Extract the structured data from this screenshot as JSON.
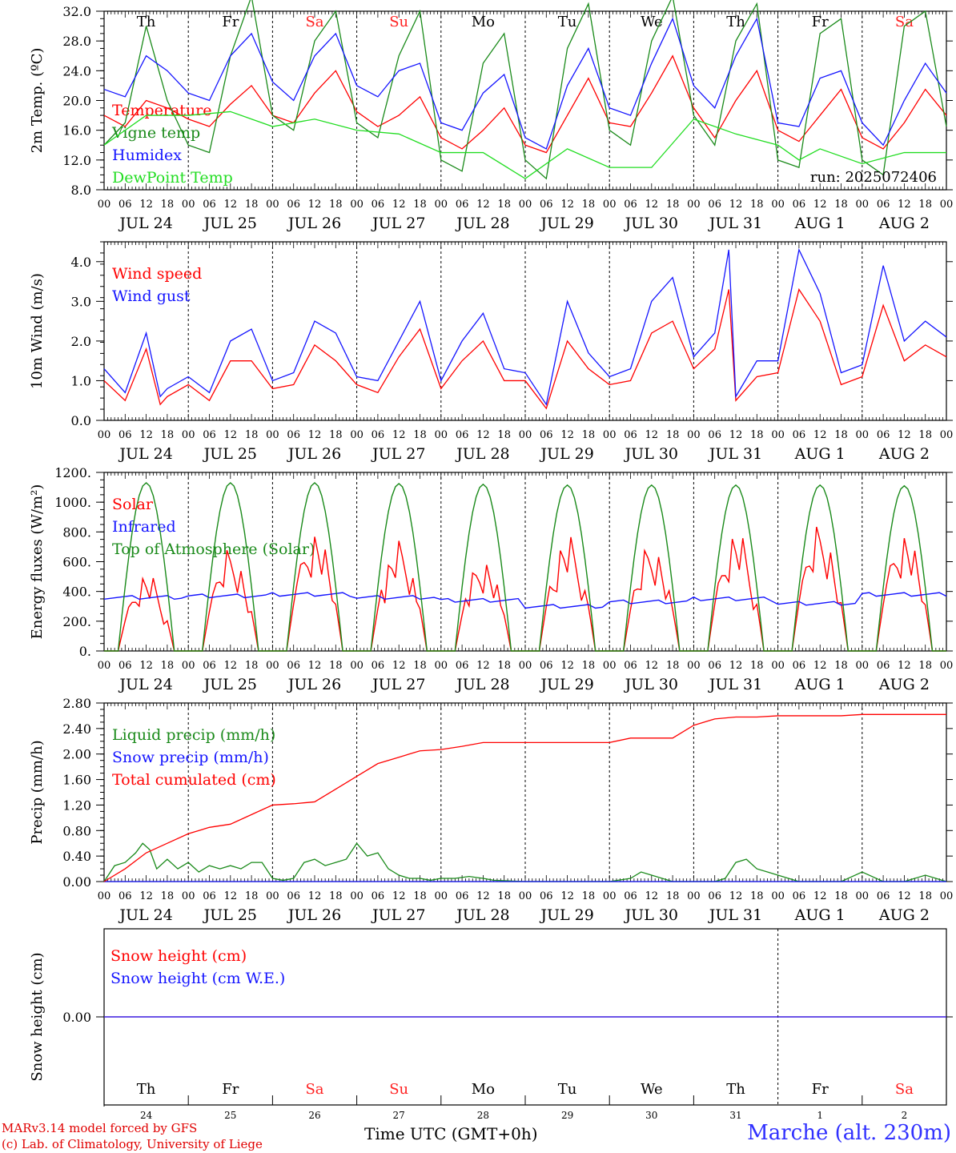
{
  "footer": {
    "model": "MARv3.14 model forced by GFS",
    "copyright": "(c) Lab. of Climatology, University of Liege",
    "station": "Marche (alt. 230m)",
    "time_label": "Time UTC (GMT+0h)"
  },
  "run_label": "run: 2025072406",
  "colors": {
    "red": "#ff0000",
    "green": "#1a8a1a",
    "blue": "#1515ff",
    "lightgreen": "#22dd22",
    "grid": "#000000"
  },
  "days": [
    "Th",
    "Fr",
    "Sa",
    "Su",
    "Mo",
    "Tu",
    "We",
    "Th",
    "Fr",
    "Sa"
  ],
  "weekend_days": [
    2,
    3,
    9
  ],
  "date_labels": [
    "JUL 24",
    "JUL 25",
    "JUL 26",
    "JUL 27",
    "JUL 28",
    "JUL 29",
    "JUL 30",
    "JUL 31",
    "AUG  1",
    "AUG  2"
  ],
  "day_numbers": [
    "24",
    "25",
    "26",
    "27",
    "28",
    "29",
    "30",
    "31",
    "1",
    "2"
  ],
  "hour_ticks": [
    "00",
    "06",
    "12",
    "18"
  ],
  "chart_data": [
    {
      "type": "line",
      "ylabel": "2m Temp. (ºC)",
      "ylim": [
        8,
        32
      ],
      "yticks": [
        "8.0",
        "12.0",
        "16.0",
        "20.0",
        "24.0",
        "28.0",
        "32.0"
      ],
      "xlim_hours": [
        0,
        240
      ],
      "series": [
        {
          "name": "Temperature",
          "color": "red",
          "x": [
            0,
            6,
            12,
            18,
            24,
            30,
            36,
            42,
            48,
            54,
            60,
            66,
            72,
            78,
            84,
            90,
            96,
            102,
            108,
            114,
            120,
            126,
            132,
            138,
            144,
            150,
            156,
            162,
            168,
            174,
            180,
            186,
            192,
            198,
            204,
            210,
            216,
            222,
            228,
            234,
            240
          ],
          "y": [
            18,
            16.5,
            20,
            19,
            17.5,
            16.5,
            19.5,
            22,
            18,
            17,
            21,
            24,
            18.5,
            16.5,
            18,
            20.5,
            15,
            13.5,
            16,
            19,
            14,
            13,
            18,
            23,
            17,
            16.5,
            21,
            26,
            19,
            15,
            20,
            24,
            16,
            14.5,
            18,
            21.5,
            15,
            13.5,
            17,
            21.5,
            18
          ]
        },
        {
          "name": "Vigne temp",
          "color": "green",
          "x": [
            0,
            6,
            12,
            18,
            24,
            30,
            36,
            42,
            48,
            54,
            60,
            66,
            72,
            78,
            84,
            90,
            96,
            102,
            108,
            114,
            120,
            126,
            132,
            138,
            144,
            150,
            156,
            162,
            168,
            174,
            180,
            186,
            192,
            198,
            204,
            210,
            216,
            222,
            228,
            234,
            240
          ],
          "y": [
            14,
            17,
            30,
            20,
            14,
            13,
            26,
            34,
            18,
            16,
            28,
            32,
            17,
            15,
            26,
            32,
            12,
            10.5,
            25,
            29,
            12,
            9.5,
            27,
            33,
            16,
            14,
            28,
            34,
            18,
            14,
            28,
            33,
            12,
            11,
            29,
            31,
            12,
            10,
            30,
            32,
            16.5
          ]
        },
        {
          "name": "Humidex",
          "color": "blue",
          "x": [
            0,
            6,
            12,
            18,
            24,
            30,
            36,
            42,
            48,
            54,
            60,
            66,
            72,
            78,
            84,
            90,
            96,
            102,
            108,
            114,
            120,
            126,
            132,
            138,
            144,
            150,
            156,
            162,
            168,
            174,
            180,
            186,
            192,
            198,
            204,
            210,
            216,
            222,
            228,
            234,
            240
          ],
          "y": [
            21.5,
            20.5,
            26,
            24,
            21,
            20,
            26,
            29,
            22.5,
            20,
            26,
            29,
            22,
            20.5,
            24,
            25,
            17,
            16,
            21,
            23.5,
            15,
            13.5,
            22,
            27,
            19,
            18,
            25,
            31,
            22,
            19,
            26,
            31,
            17,
            16.5,
            23,
            24,
            17,
            14,
            20,
            25,
            21
          ]
        },
        {
          "name": "DewPoint Temp",
          "color": "lightgreen",
          "x": [
            0,
            12,
            24,
            36,
            48,
            60,
            72,
            84,
            96,
            108,
            120,
            132,
            144,
            156,
            168,
            180,
            192,
            198,
            204,
            216,
            228,
            240
          ],
          "y": [
            14,
            18,
            18,
            18.5,
            16.5,
            17.5,
            16,
            15.5,
            13,
            13,
            9.5,
            13.5,
            11,
            11,
            17.5,
            15.5,
            14,
            12,
            13.5,
            11.5,
            13,
            13
          ]
        }
      ],
      "legend": [
        "Temperature",
        "Vigne temp",
        "Humidex",
        "DewPoint Temp"
      ]
    },
    {
      "type": "line",
      "ylabel": "10m Wind (m/s)",
      "ylim": [
        0,
        4.5
      ],
      "yticks": [
        "0.0",
        "1.0",
        "2.0",
        "3.0",
        "4.0"
      ],
      "series": [
        {
          "name": "Wind speed",
          "color": "red",
          "x": [
            0,
            6,
            12,
            16,
            18,
            24,
            30,
            36,
            42,
            48,
            54,
            60,
            66,
            72,
            78,
            84,
            90,
            96,
            102,
            108,
            114,
            120,
            126,
            132,
            138,
            144,
            150,
            156,
            162,
            168,
            174,
            178,
            180,
            186,
            192,
            198,
            204,
            210,
            216,
            222,
            228,
            234,
            240
          ],
          "y": [
            1.0,
            0.5,
            1.8,
            0.4,
            0.6,
            0.9,
            0.5,
            1.5,
            1.5,
            0.8,
            0.9,
            1.9,
            1.5,
            0.9,
            0.7,
            1.6,
            2.3,
            0.8,
            1.5,
            2.0,
            1.0,
            1.0,
            0.3,
            2.0,
            1.3,
            0.9,
            1.0,
            2.2,
            2.5,
            1.3,
            1.8,
            3.3,
            0.5,
            1.1,
            1.2,
            3.3,
            2.5,
            0.9,
            1.1,
            2.9,
            1.5,
            1.9,
            1.6
          ]
        },
        {
          "name": "Wind gust",
          "color": "blue",
          "x": [
            0,
            6,
            12,
            16,
            18,
            24,
            30,
            36,
            42,
            48,
            54,
            60,
            66,
            72,
            78,
            84,
            90,
            96,
            102,
            108,
            114,
            120,
            126,
            132,
            138,
            144,
            150,
            156,
            162,
            168,
            174,
            178,
            180,
            186,
            192,
            198,
            204,
            210,
            216,
            222,
            228,
            234,
            240
          ],
          "y": [
            1.3,
            0.7,
            2.2,
            0.6,
            0.8,
            1.1,
            0.7,
            2.0,
            2.3,
            1.0,
            1.2,
            2.5,
            2.2,
            1.1,
            1.0,
            2.0,
            3.0,
            1.0,
            2.0,
            2.7,
            1.3,
            1.2,
            0.4,
            3.0,
            1.7,
            1.1,
            1.3,
            3.0,
            3.6,
            1.6,
            2.2,
            4.3,
            0.6,
            1.5,
            1.5,
            4.3,
            3.2,
            1.2,
            1.4,
            3.9,
            2.0,
            2.5,
            2.1
          ]
        }
      ],
      "legend": [
        "Wind speed",
        "Wind gust"
      ]
    },
    {
      "type": "line",
      "ylabel": "Energy fluxes (W/m²)",
      "ylim": [
        0,
        1200
      ],
      "yticks": [
        "0.",
        "200.",
        "400.",
        "600.",
        "800.",
        "1000.",
        "1200."
      ],
      "series": [
        {
          "name": "Solar",
          "color": "red",
          "peak_per_day": [
            530,
            690,
            820,
            740,
            630,
            780,
            730,
            820,
            850,
            810
          ]
        },
        {
          "name": "Infrared",
          "color": "blue",
          "baseline": [
            360,
            370,
            380,
            360,
            340,
            300,
            330,
            350,
            320,
            380
          ]
        },
        {
          "name": "Top of Atmosphere (Solar)",
          "color": "green",
          "peak_per_day": [
            1130,
            1130,
            1130,
            1125,
            1120,
            1115,
            1115,
            1115,
            1115,
            1110
          ]
        }
      ],
      "legend": [
        "Solar",
        "Infrared",
        "Top of Atmosphere (Solar)"
      ]
    },
    {
      "type": "line",
      "ylabel": "Precip (mm/h)",
      "ylim": [
        0,
        2.8
      ],
      "yticks": [
        "0.00",
        "0.40",
        "0.80",
        "1.20",
        "1.60",
        "2.00",
        "2.40",
        "2.80"
      ],
      "series": [
        {
          "name": "Liquid precip (mm/h)",
          "color": "green",
          "x": [
            0,
            3,
            6,
            9,
            11,
            13,
            15,
            18,
            21,
            24,
            27,
            30,
            33,
            36,
            39,
            42,
            45,
            48,
            51,
            54,
            57,
            60,
            63,
            66,
            69,
            72,
            75,
            78,
            81,
            84,
            87,
            90,
            93,
            96,
            100,
            104,
            108,
            111,
            120,
            144,
            150,
            153,
            156,
            162,
            168,
            174,
            177,
            180,
            183,
            186,
            189,
            192,
            195,
            198,
            204,
            210,
            216,
            222,
            225,
            228,
            234,
            240
          ],
          "y": [
            0,
            0.25,
            0.3,
            0.45,
            0.6,
            0.5,
            0.2,
            0.35,
            0.2,
            0.3,
            0.15,
            0.25,
            0.2,
            0.25,
            0.2,
            0.3,
            0.3,
            0.05,
            0.02,
            0.05,
            0.3,
            0.35,
            0.25,
            0.3,
            0.35,
            0.6,
            0.4,
            0.45,
            0.2,
            0.1,
            0.05,
            0.05,
            0.02,
            0.05,
            0.05,
            0.08,
            0.05,
            0.02,
            0,
            0,
            0.05,
            0.15,
            0.1,
            0,
            0,
            0,
            0.05,
            0.3,
            0.35,
            0.2,
            0.15,
            0.1,
            0.05,
            0,
            0,
            0,
            0.15,
            0,
            0,
            0,
            0.1,
            0
          ]
        },
        {
          "name": "Snow precip (mm/h)",
          "color": "blue",
          "x": [
            0,
            240
          ],
          "y": [
            0,
            0
          ]
        },
        {
          "name": "Total cumulated (cm)",
          "color": "red",
          "x": [
            0,
            6,
            12,
            18,
            24,
            30,
            36,
            42,
            48,
            54,
            60,
            66,
            72,
            78,
            84,
            90,
            96,
            102,
            108,
            114,
            120,
            126,
            132,
            138,
            144,
            150,
            156,
            162,
            168,
            174,
            180,
            186,
            192,
            198,
            204,
            210,
            216,
            222,
            228,
            234,
            240
          ],
          "y": [
            0,
            0.2,
            0.45,
            0.6,
            0.75,
            0.85,
            0.9,
            1.05,
            1.2,
            1.22,
            1.25,
            1.45,
            1.65,
            1.85,
            1.95,
            2.05,
            2.07,
            2.12,
            2.18,
            2.18,
            2.18,
            2.18,
            2.18,
            2.18,
            2.18,
            2.25,
            2.25,
            2.25,
            2.45,
            2.55,
            2.58,
            2.58,
            2.6,
            2.6,
            2.6,
            2.6,
            2.62,
            2.62,
            2.62,
            2.62,
            2.62
          ]
        }
      ],
      "legend": [
        "Liquid precip (mm/h)",
        "Snow precip (mm/h)",
        "Total cumulated (cm)"
      ]
    },
    {
      "type": "line",
      "ylabel": "Snow height (cm)",
      "yticks": [
        "0.00"
      ],
      "series": [
        {
          "name": "Snow height (cm)",
          "color": "red",
          "x": [
            0,
            240
          ],
          "y": [
            0,
            0
          ]
        },
        {
          "name": "Snow height (cm W.E.)",
          "color": "blue",
          "x": [
            0,
            240
          ],
          "y": [
            0,
            0
          ]
        }
      ],
      "legend": [
        "Snow height (cm)",
        "Snow height (cm W.E.)"
      ]
    }
  ]
}
